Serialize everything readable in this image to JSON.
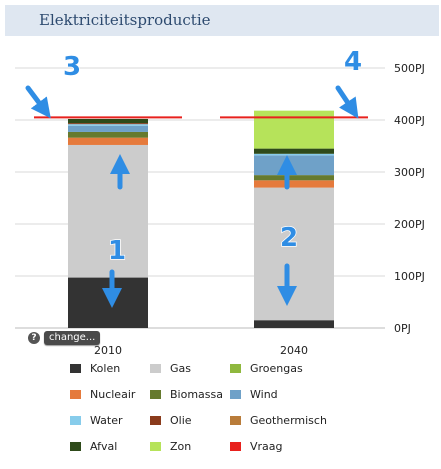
{
  "header": {
    "title": "Elektriciteitsproductie"
  },
  "controls": {
    "help_label": "?",
    "change_label": "change..."
  },
  "chart_data": {
    "type": "bar",
    "stacked": true,
    "categories": [
      "2010",
      "2040"
    ],
    "ylim": [
      0,
      500
    ],
    "yticks": [
      {
        "value": 0,
        "label": "0PJ"
      },
      {
        "value": 100,
        "label": "100PJ"
      },
      {
        "value": 200,
        "label": "200PJ"
      },
      {
        "value": 300,
        "label": "300PJ"
      },
      {
        "value": 400,
        "label": "400PJ"
      },
      {
        "value": 500,
        "label": "500PJ"
      }
    ],
    "grid": true,
    "series": [
      {
        "name": "Kolen",
        "color": "#333333",
        "values": [
          97,
          15
        ]
      },
      {
        "name": "Gas",
        "color": "#cccccc",
        "values": [
          255,
          255
        ]
      },
      {
        "name": "Nucleair",
        "color": "#e57a3c",
        "values": [
          14,
          14
        ]
      },
      {
        "name": "Biomassa",
        "color": "#667a2e",
        "values": [
          11,
          10
        ]
      },
      {
        "name": "Wind",
        "color": "#6fa1c8",
        "values": [
          12,
          38
        ]
      },
      {
        "name": "Water",
        "color": "#87cceb",
        "values": [
          3,
          3
        ]
      },
      {
        "name": "Olie",
        "color": "#8a3b1c",
        "values": [
          2,
          0
        ]
      },
      {
        "name": "Geothermisch",
        "color": "#b97c3a",
        "values": [
          0,
          0
        ]
      },
      {
        "name": "Afval",
        "color": "#2e4a1a",
        "values": [
          8,
          10
        ]
      },
      {
        "name": "Zon",
        "color": "#b6e35a",
        "values": [
          0,
          73
        ]
      },
      {
        "name": "Groengas",
        "color": "#8fb83e",
        "values": [
          0,
          0
        ]
      }
    ],
    "demand": {
      "name": "Vraag",
      "color": "#e8211d",
      "values": [
        405,
        405
      ]
    },
    "legend": [
      {
        "name": "Kolen",
        "color": "#333333"
      },
      {
        "name": "Gas",
        "color": "#cccccc"
      },
      {
        "name": "Groengas",
        "color": "#8fb83e"
      },
      {
        "name": "Nucleair",
        "color": "#e57a3c"
      },
      {
        "name": "Biomassa",
        "color": "#667a2e"
      },
      {
        "name": "Wind",
        "color": "#6fa1c8"
      },
      {
        "name": "Water",
        "color": "#87cceb"
      },
      {
        "name": "Olie",
        "color": "#8a3b1c"
      },
      {
        "name": "Geothermisch",
        "color": "#b97c3a"
      },
      {
        "name": "Afval",
        "color": "#2e4a1a"
      },
      {
        "name": "Zon",
        "color": "#b6e35a"
      },
      {
        "name": "Vraag",
        "color": "#e8211d"
      }
    ],
    "annotations": [
      {
        "label": "1",
        "color": "#2f8de4"
      },
      {
        "label": "2",
        "color": "#2f8de4"
      },
      {
        "label": "3",
        "color": "#2f8de4"
      },
      {
        "label": "4",
        "color": "#2f8de4"
      }
    ]
  }
}
